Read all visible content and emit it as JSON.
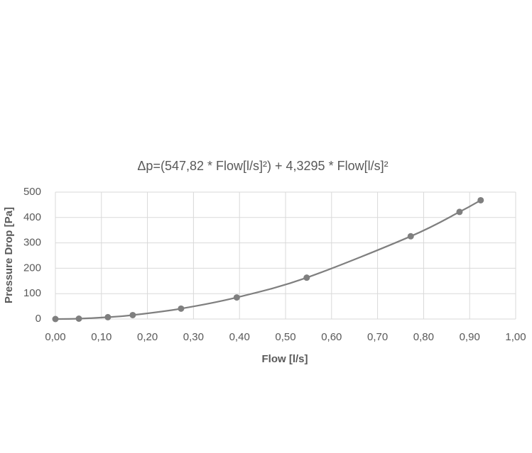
{
  "chart_data": {
    "type": "scatter",
    "title": "Δp=(547,82 * Flow[l/s]²) + 4,3295 * Flow[l/s]²",
    "x_label": "Flow [l/s]",
    "y_label": "Pressure Drop [Pa]",
    "series": [
      {
        "color": "#7f7f7f",
        "x": [
          0.0,
          0.051,
          0.114,
          0.168,
          0.273,
          0.394,
          0.546,
          0.772,
          0.878,
          0.924
        ],
        "values": [
          0,
          1.4,
          7.2,
          15.5,
          41,
          85,
          163,
          326,
          422,
          468
        ]
      }
    ],
    "xlim": [
      0,
      1
    ],
    "xticks": [
      {
        "value": 0,
        "label": "0,00"
      },
      {
        "value": 0.1,
        "label": "0,10"
      },
      {
        "value": 0.2,
        "label": "0,20"
      },
      {
        "value": 0.3,
        "label": "0,30"
      },
      {
        "value": 0.4,
        "label": "0,40"
      },
      {
        "value": 0.5,
        "label": "0,50"
      },
      {
        "value": 0.6,
        "label": "0,60"
      },
      {
        "value": 0.7,
        "label": "0,70"
      },
      {
        "value": 0.8,
        "label": "0,80"
      },
      {
        "value": 0.9,
        "label": "0,90"
      },
      {
        "value": 1,
        "label": "1,00"
      }
    ],
    "ylim": [
      0,
      500
    ],
    "yticks": [
      0,
      100,
      200,
      300,
      400,
      500
    ],
    "grid": true
  }
}
